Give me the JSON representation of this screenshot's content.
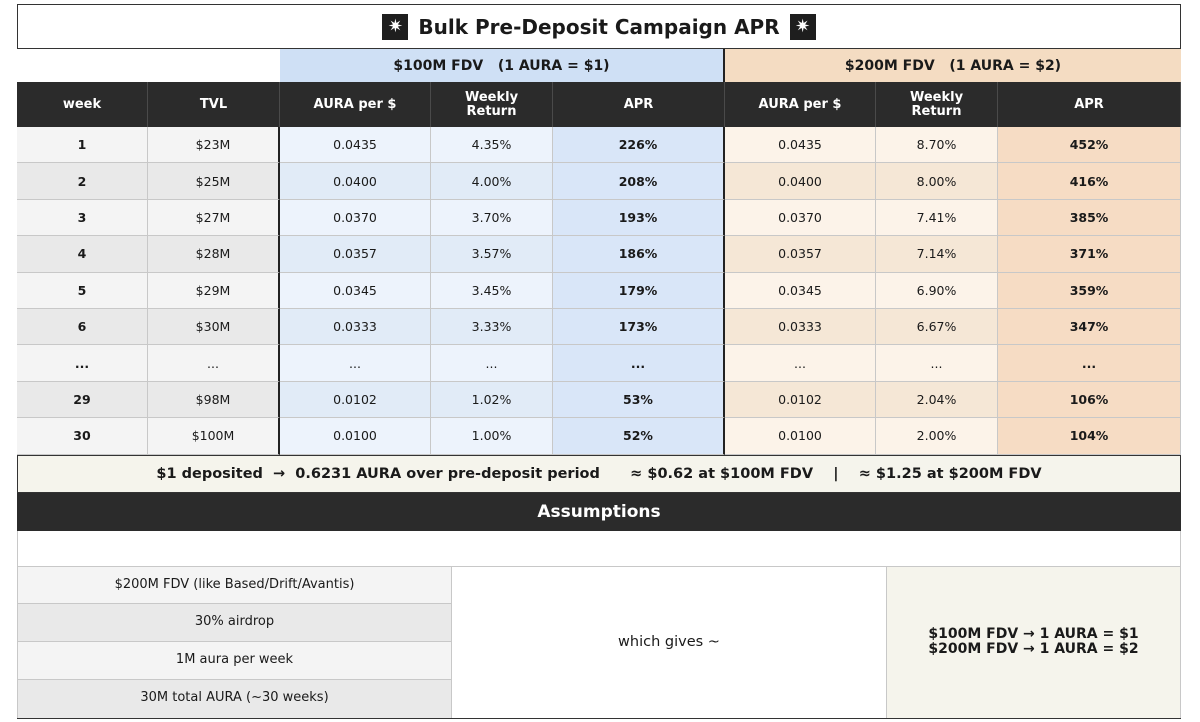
{
  "title": "Bulk Pre-Deposit Campaign APR",
  "title_icon": "star-icon",
  "groups": {
    "a": "$100M FDV   (1 AURA = $1)",
    "b": "$200M FDV   (1 AURA = $2)"
  },
  "headers": [
    "week",
    "TVL",
    "AURA per $",
    "Weekly Return",
    "APR",
    "AURA per $",
    "Weekly Return",
    "APR"
  ],
  "rows": [
    {
      "week": "1",
      "tvl": "$23M",
      "a_aura": "0.0435",
      "a_weekly": "4.35%",
      "a_apr": "226%",
      "b_aura": "0.0435",
      "b_weekly": "8.70%",
      "b_apr": "452%"
    },
    {
      "week": "2",
      "tvl": "$25M",
      "a_aura": "0.0400",
      "a_weekly": "4.00%",
      "a_apr": "208%",
      "b_aura": "0.0400",
      "b_weekly": "8.00%",
      "b_apr": "416%"
    },
    {
      "week": "3",
      "tvl": "$27M",
      "a_aura": "0.0370",
      "a_weekly": "3.70%",
      "a_apr": "193%",
      "b_aura": "0.0370",
      "b_weekly": "7.41%",
      "b_apr": "385%"
    },
    {
      "week": "4",
      "tvl": "$28M",
      "a_aura": "0.0357",
      "a_weekly": "3.57%",
      "a_apr": "186%",
      "b_aura": "0.0357",
      "b_weekly": "7.14%",
      "b_apr": "371%"
    },
    {
      "week": "5",
      "tvl": "$29M",
      "a_aura": "0.0345",
      "a_weekly": "3.45%",
      "a_apr": "179%",
      "b_aura": "0.0345",
      "b_weekly": "6.90%",
      "b_apr": "359%"
    },
    {
      "week": "6",
      "tvl": "$30M",
      "a_aura": "0.0333",
      "a_weekly": "3.33%",
      "a_apr": "173%",
      "b_aura": "0.0333",
      "b_weekly": "6.67%",
      "b_apr": "347%"
    },
    {
      "week": "...",
      "tvl": "...",
      "a_aura": "...",
      "a_weekly": "...",
      "a_apr": "...",
      "b_aura": "...",
      "b_weekly": "...",
      "b_apr": "..."
    },
    {
      "week": "29",
      "tvl": "$98M",
      "a_aura": "0.0102",
      "a_weekly": "1.02%",
      "a_apr": "53%",
      "b_aura": "0.0102",
      "b_weekly": "2.04%",
      "b_apr": "106%"
    },
    {
      "week": "30",
      "tvl": "$100M",
      "a_aura": "0.0100",
      "a_weekly": "1.00%",
      "a_apr": "52%",
      "b_aura": "0.0100",
      "b_weekly": "2.00%",
      "b_apr": "104%"
    }
  ],
  "summary": "$1 deposited  →  0.6231 AURA over pre-deposit period      ≈ $0.62 at $100M FDV    |    ≈ $1.25 at $200M FDV",
  "assumptions": {
    "title": "Assumptions",
    "items": [
      "$200M FDV (like Based/Drift/Avantis)",
      "30% airdrop",
      "1M aura per week",
      "30M total AURA (~30 weeks)"
    ],
    "middle": "which gives ~",
    "results": [
      "$100M FDV → 1 AURA = $1",
      "$200M FDV → 1 AURA = $2"
    ]
  }
}
